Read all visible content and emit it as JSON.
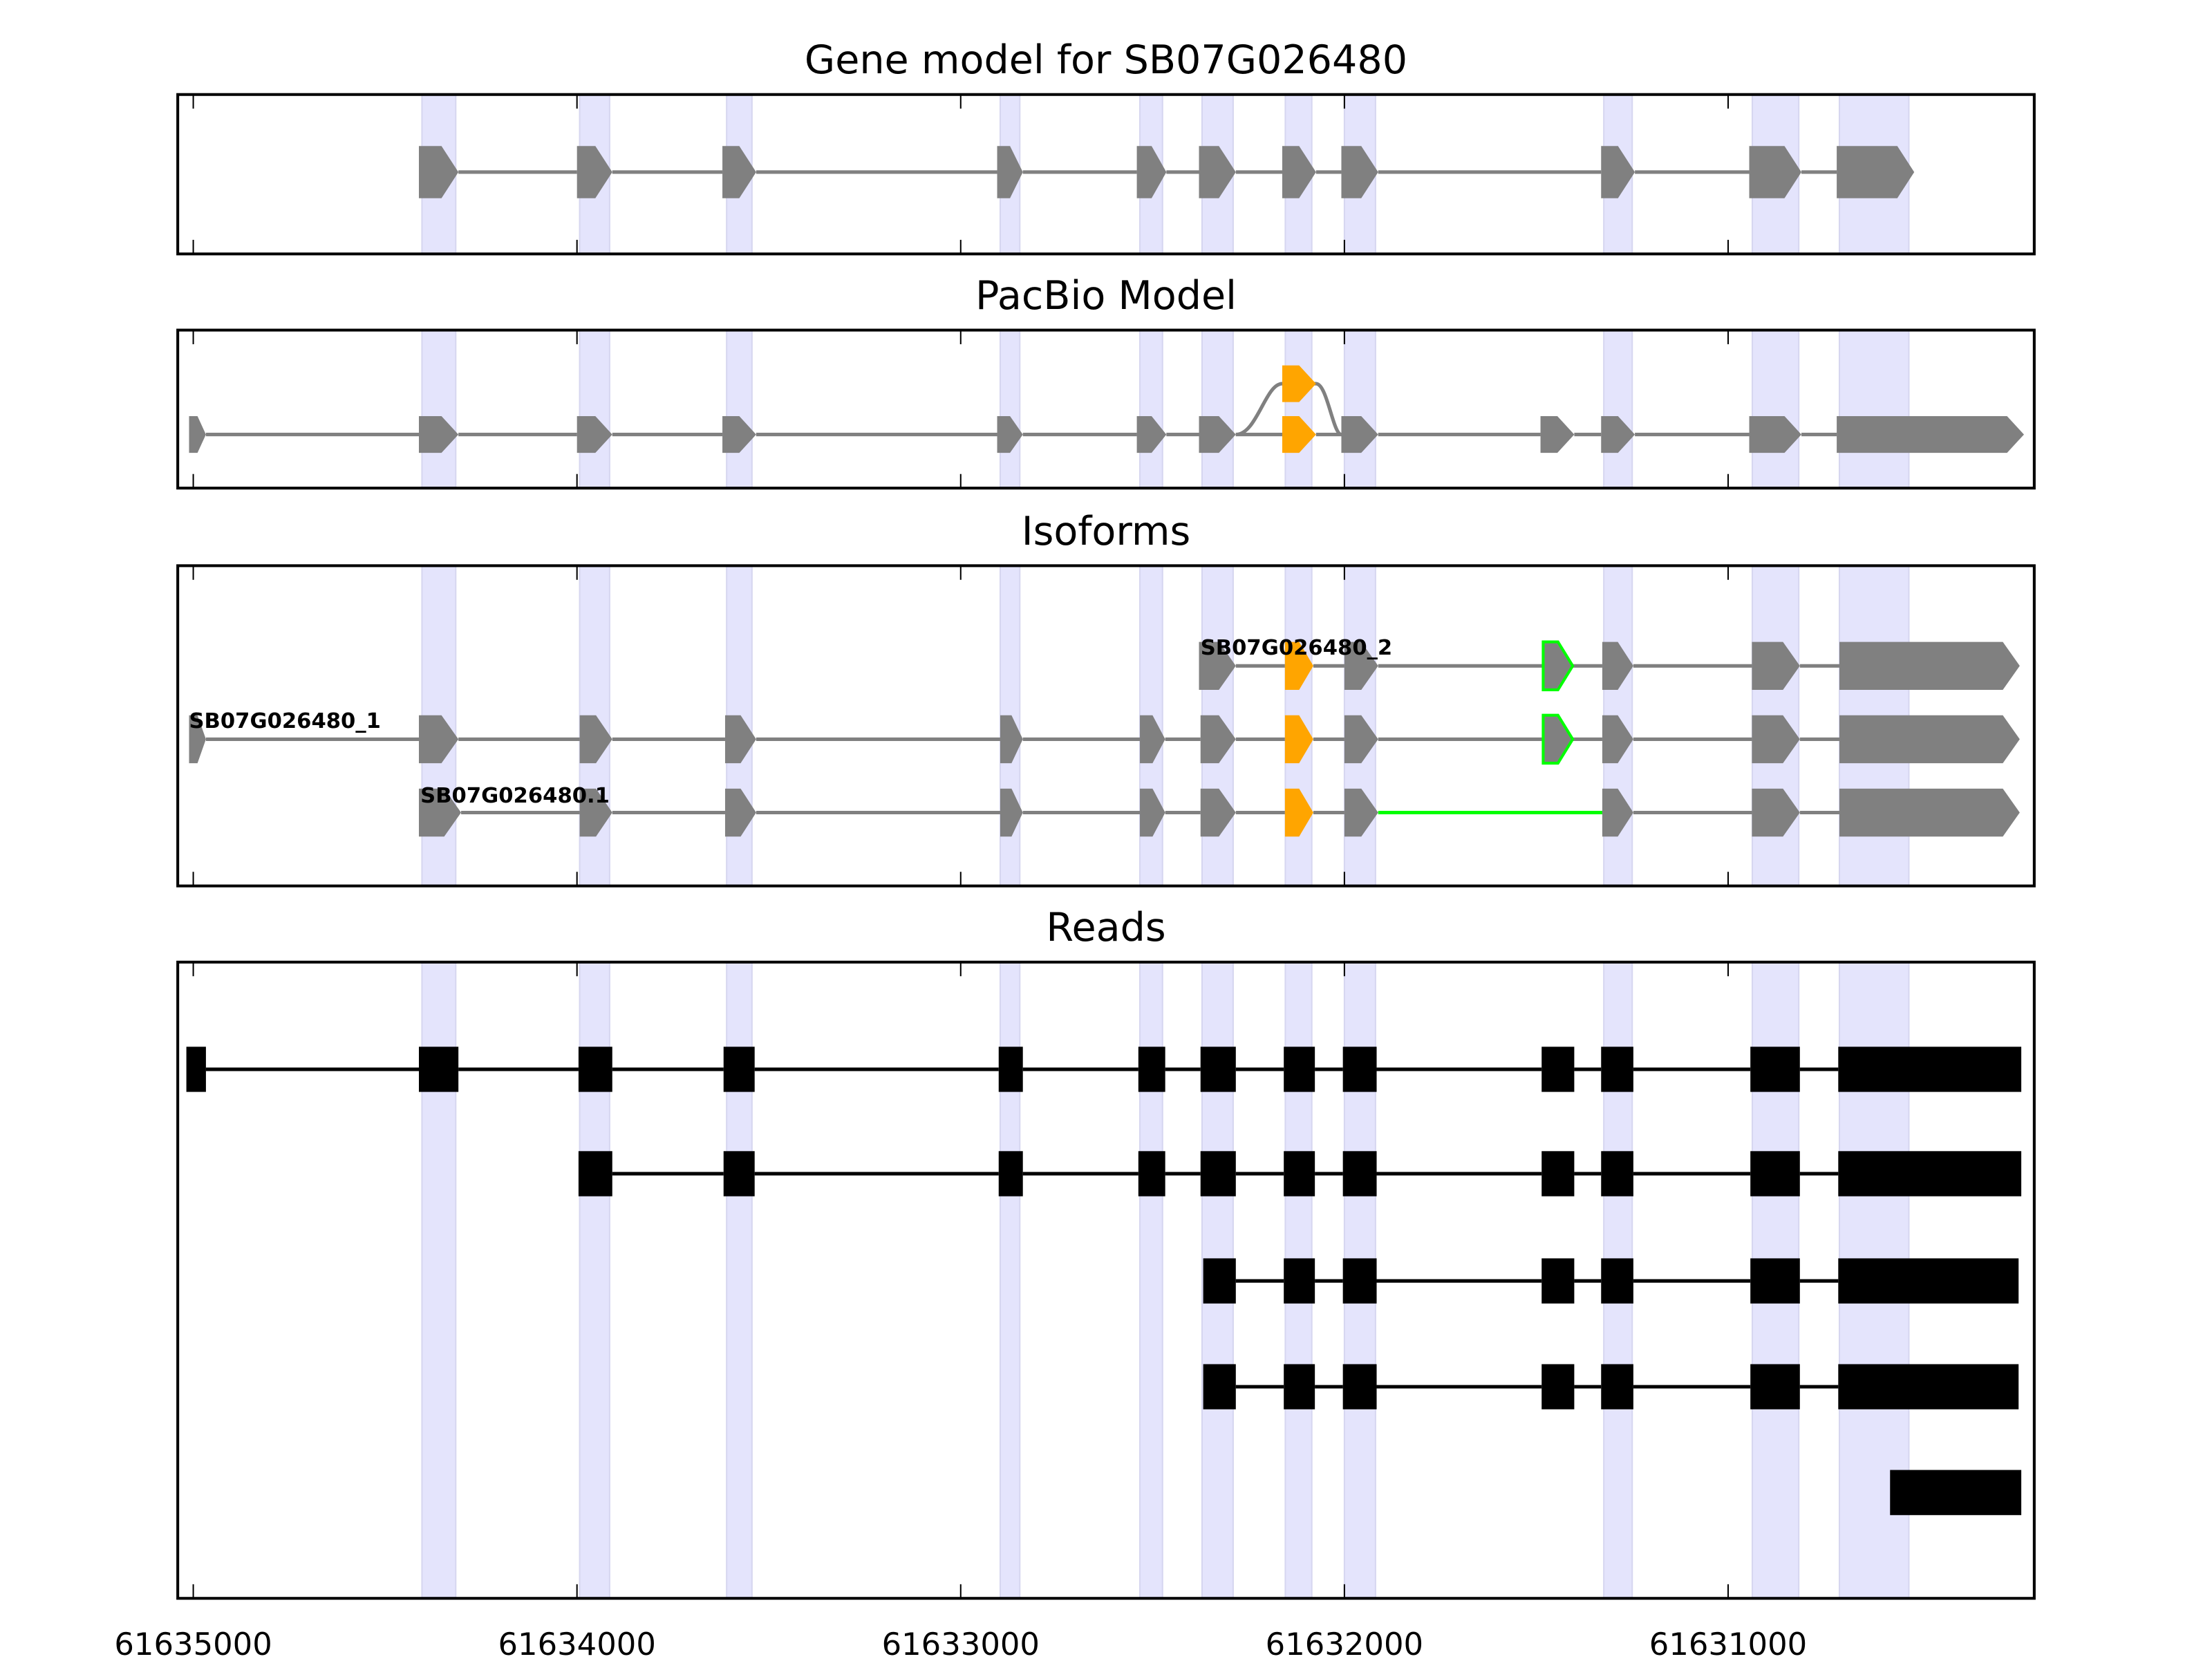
{
  "chart_data": {
    "type": "gene-structure",
    "xaxis": {
      "range": [
        61635040,
        61630202
      ],
      "reversed": true,
      "ticks": [
        61635000,
        61634000,
        61633000,
        61632000,
        61631000
      ],
      "tick_labels": [
        "61635000",
        "61634000",
        "61633000",
        "61632000",
        "61631000"
      ]
    },
    "shaded_regions": [
      [
        61634404,
        61634316
      ],
      [
        61633993,
        61633915
      ],
      [
        61633610,
        61633544
      ],
      [
        61632897,
        61632846
      ],
      [
        61632533,
        61632474
      ],
      [
        61632371,
        61632290
      ],
      [
        61632154,
        61632085
      ],
      [
        61632000,
        61631919
      ],
      [
        61631324,
        61631250
      ],
      [
        61630937,
        61630816
      ],
      [
        61630710,
        61630529
      ]
    ],
    "colors": {
      "exon": "#808080",
      "alt_exon": "#ffa500",
      "novel": "#00ff00",
      "read": "#000000",
      "shade": "#e4e4fc"
    },
    "panels": [
      {
        "title": "Gene model for SB07G026480",
        "tracks": [
          {
            "exons": [
              [
                61634412,
                61634309
              ],
              [
                61634000,
                61633908
              ],
              [
                61633621,
                61633533
              ],
              [
                61632905,
                61632838
              ],
              [
                61632541,
                61632464
              ],
              [
                61632379,
                61632283
              ],
              [
                61632162,
                61632074
              ],
              [
                61632008,
                61631912
              ],
              [
                61631331,
                61631243
              ],
              [
                61630945,
                61630809
              ],
              [
                61630717,
                61630515
              ]
            ]
          }
        ]
      },
      {
        "title": "PacBio Model",
        "tracks": [
          {
            "exons": [
              [
                61635011,
                61634967
              ],
              [
                61634412,
                61634309
              ],
              [
                61634000,
                61633908
              ],
              [
                61633621,
                61633533
              ],
              [
                61632905,
                61632838
              ],
              [
                61632541,
                61632464
              ],
              [
                61632379,
                61632283
              ],
              [
                61632162,
                61632074,
                "alt"
              ],
              [
                61632008,
                61631912
              ],
              [
                61631489,
                61631401
              ],
              [
                61631331,
                61631243
              ],
              [
                61630945,
                61630809
              ],
              [
                61630717,
                61630229
              ]
            ],
            "alt_branch": {
              "from": 61632283,
              "exon": [
                61632162,
                61632074
              ],
              "to": 61632008
            }
          }
        ]
      },
      {
        "title": "Isoforms",
        "tracks": [
          {
            "label": "SB07G026480_2",
            "exons": [
              [
                61632379,
                61632283
              ],
              [
                61632155,
                61632081,
                "alt"
              ],
              [
                61632000,
                61631912
              ],
              [
                61631482,
                61631405,
                "novel"
              ],
              [
                61631328,
                61631247
              ],
              [
                61630938,
                61630813
              ],
              [
                61630710,
                61630240
              ]
            ]
          },
          {
            "label": "SB07G026480_1",
            "exons": [
              [
                61635011,
                61634967
              ],
              [
                61634412,
                61634309
              ],
              [
                61633993,
                61633908
              ],
              [
                61633614,
                61633533
              ],
              [
                61632897,
                61632838
              ],
              [
                61632533,
                61632467
              ],
              [
                61632375,
                61632283
              ],
              [
                61632155,
                61632081,
                "alt"
              ],
              [
                61632000,
                61631912
              ],
              [
                61631482,
                61631405,
                "novel"
              ],
              [
                61631328,
                61631247
              ],
              [
                61630938,
                61630813
              ],
              [
                61630710,
                61630240
              ]
            ]
          },
          {
            "label": "SB07G026480.1",
            "exons": [
              [
                61634412,
                61634302
              ],
              [
                61633993,
                61633908
              ],
              [
                61633614,
                61633533
              ],
              [
                61632897,
                61632838
              ],
              [
                61632533,
                61632467
              ],
              [
                61632375,
                61632283
              ],
              [
                61632155,
                61632081,
                "alt"
              ],
              [
                61632000,
                61631912
              ],
              [
                61631328,
                61631247
              ],
              [
                61630938,
                61630813
              ],
              [
                61630710,
                61630240
              ]
            ],
            "novel_intron": [
              61631912,
              61631328
            ]
          }
        ]
      },
      {
        "title": "Reads",
        "tracks": [
          {
            "exons": [
              [
                61635018,
                61634967
              ],
              [
                61634412,
                61634309
              ],
              [
                61633996,
                61633908
              ],
              [
                61633618,
                61633537
              ],
              [
                61632901,
                61632838
              ],
              [
                61632537,
                61632467
              ],
              [
                61632375,
                61632283
              ],
              [
                61632158,
                61632077
              ],
              [
                61632004,
                61631916
              ],
              [
                61631486,
                61631401
              ],
              [
                61631331,
                61631247
              ],
              [
                61630942,
                61630813
              ],
              [
                61630713,
                61630236
              ]
            ]
          },
          {
            "exons": [
              [
                61633996,
                61633908
              ],
              [
                61633618,
                61633537
              ],
              [
                61632901,
                61632838
              ],
              [
                61632537,
                61632467
              ],
              [
                61632375,
                61632283
              ],
              [
                61632158,
                61632077
              ],
              [
                61632004,
                61631916
              ],
              [
                61631486,
                61631401
              ],
              [
                61631331,
                61631247
              ],
              [
                61630942,
                61630813
              ],
              [
                61630713,
                61630236
              ]
            ]
          },
          {
            "exons": [
              [
                61632368,
                61632283
              ],
              [
                61632158,
                61632077
              ],
              [
                61632004,
                61631916
              ],
              [
                61631486,
                61631401
              ],
              [
                61631331,
                61631247
              ],
              [
                61630942,
                61630813
              ],
              [
                61630713,
                61630243
              ]
            ]
          },
          {
            "exons": [
              [
                61632368,
                61632283
              ],
              [
                61632158,
                61632077
              ],
              [
                61632004,
                61631916
              ],
              [
                61631486,
                61631401
              ],
              [
                61631331,
                61631247
              ],
              [
                61630942,
                61630813
              ],
              [
                61630713,
                61630243
              ]
            ]
          },
          {
            "exons": [
              [
                61630578,
                61630236
              ]
            ]
          }
        ]
      }
    ]
  }
}
